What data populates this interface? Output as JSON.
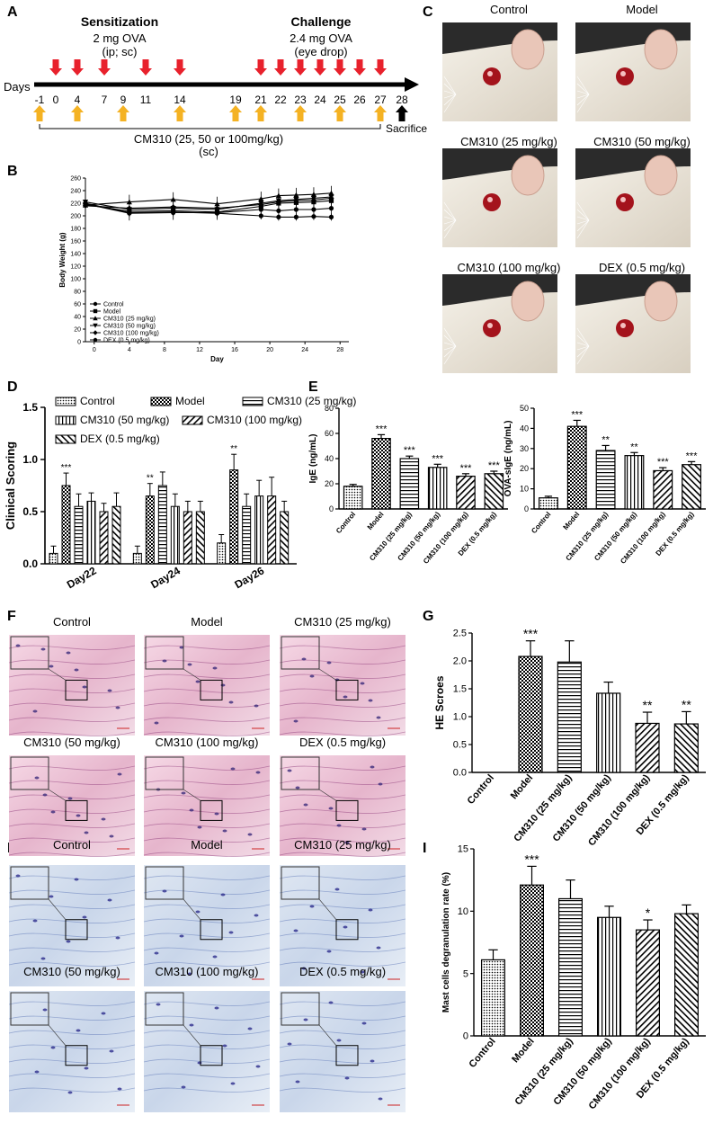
{
  "panel_letters": [
    "A",
    "B",
    "C",
    "D",
    "E",
    "F",
    "G",
    "H",
    "I"
  ],
  "timeline": {
    "sensitization_title": "Sensitization",
    "sensitization_dose": "2 mg OVA",
    "sensitization_route": "(ip; sc)",
    "challenge_title": "Challenge",
    "challenge_dose": "2.4 mg OVA",
    "challenge_route": "(eye drop)",
    "days_label": "Days",
    "days": [
      "-1",
      "0",
      "4",
      "7",
      "9",
      "11",
      "14",
      "19",
      "21",
      "22",
      "23",
      "24",
      "25",
      "26",
      "27",
      "28"
    ],
    "red_arrow_days": [
      "0",
      "4",
      "7",
      "11",
      "14",
      "21",
      "22",
      "23",
      "24",
      "25",
      "26",
      "27"
    ],
    "yellow_arrow_days": [
      "-1",
      "4",
      "9",
      "14",
      "19",
      "21",
      "23",
      "25",
      "27"
    ],
    "black_arrow_days": [
      "28"
    ],
    "sacrifice_label": "Sacrifice",
    "treatment_label": "CM310 (25, 50 or 100mg/kg)",
    "treatment_route": "(sc)",
    "colors": {
      "red_arrow": "#e8212c",
      "yellow_arrow": "#f4b223",
      "black_arrow": "#000000"
    }
  },
  "photo_labels": [
    "Control",
    "Model",
    "CM310 (25 mg/kg)",
    "CM310 (50 mg/kg)",
    "CM310 (100 mg/kg)",
    "DEX (0.5 mg/kg)"
  ],
  "he_labels": [
    "Control",
    "Model",
    "CM310 (25 mg/kg)",
    "CM310 (50 mg/kg)",
    "CM310 (100 mg/kg)",
    "DEX (0.5 mg/kg)"
  ],
  "tb_labels": [
    "Control",
    "Model",
    "CM310 (25 mg/kg)",
    "CM310 (50 mg/kg)",
    "CM310 (100 mg/kg)",
    "DEX (0.5 mg/kg)"
  ],
  "chart_data": [
    {
      "panel": "B",
      "type": "line",
      "xlabel": "Day",
      "ylabel": "Body Weight (g)",
      "xticks": [
        0,
        4,
        8,
        12,
        16,
        20,
        24,
        28
      ],
      "yticks": [
        0,
        20,
        40,
        60,
        80,
        100,
        120,
        140,
        160,
        180,
        200,
        220,
        240,
        260
      ],
      "xlim": [
        -1,
        29
      ],
      "ylim": [
        0,
        260
      ],
      "x": [
        -1,
        4,
        9,
        14,
        19,
        21,
        23,
        25,
        27
      ],
      "legend_placement": "bottom-left",
      "series": [
        {
          "name": "Control",
          "values": [
            220,
            205,
            206,
            204,
            200,
            198,
            198,
            199,
            198
          ]
        },
        {
          "name": "Model",
          "values": [
            218,
            207,
            208,
            206,
            215,
            220,
            221,
            222,
            224
          ]
        },
        {
          "name": "CM310 (25 mg/kg)",
          "values": [
            217,
            222,
            226,
            219,
            227,
            232,
            233,
            234,
            236
          ]
        },
        {
          "name": "CM310 (50 mg/kg)",
          "values": [
            222,
            210,
            212,
            210,
            220,
            224,
            226,
            228,
            230
          ]
        },
        {
          "name": "CM310 (100 mg/kg)",
          "values": [
            216,
            212,
            214,
            212,
            218,
            222,
            224,
            225,
            228
          ]
        },
        {
          "name": "DEX (0.5 mg/kg)",
          "values": [
            219,
            204,
            205,
            205,
            210,
            208,
            210,
            210,
            212
          ]
        }
      ]
    },
    {
      "panel": "D",
      "type": "bar",
      "ylabel": "Clinical Scoring",
      "ylim": [
        0,
        1.5
      ],
      "yticks": [
        "0.0",
        "0.5",
        "1.0",
        "1.5"
      ],
      "categories": [
        "Day22",
        "Day24",
        "Day26"
      ],
      "legend_placement": "top",
      "series": [
        {
          "name": "Control",
          "values": [
            0.1,
            0.1,
            0.2
          ],
          "errors": [
            0.07,
            0.07,
            0.08
          ]
        },
        {
          "name": "Model",
          "values": [
            0.75,
            0.65,
            0.9
          ],
          "errors": [
            0.12,
            0.12,
            0.15
          ],
          "sig": [
            "***",
            "**",
            "**"
          ]
        },
        {
          "name": "CM310 (25 mg/kg)",
          "values": [
            0.55,
            0.75,
            0.55
          ],
          "errors": [
            0.12,
            0.13,
            0.12
          ]
        },
        {
          "name": "CM310 (50 mg/kg)",
          "values": [
            0.6,
            0.55,
            0.65
          ],
          "errors": [
            0.08,
            0.12,
            0.15
          ]
        },
        {
          "name": "CM310 (100 mg/kg)",
          "values": [
            0.5,
            0.5,
            0.65
          ],
          "errors": [
            0.08,
            0.1,
            0.18
          ]
        },
        {
          "name": "DEX (0.5 mg/kg)",
          "values": [
            0.55,
            0.5,
            0.5
          ],
          "errors": [
            0.13,
            0.1,
            0.1
          ]
        }
      ]
    },
    {
      "panel": "E-left",
      "type": "bar",
      "ylabel": "IgE (ng/mL)",
      "ylim": [
        0,
        80
      ],
      "yticks": [
        "0",
        "20",
        "40",
        "60",
        "80"
      ],
      "categories": [
        "Control",
        "Model",
        "CM310 (25 mg/kg)",
        "CM310 (50 mg/kg)",
        "CM310 (100 mg/kg)",
        "DEX (0.5 mg/kg)"
      ],
      "values": [
        18,
        56,
        40,
        33,
        26,
        28
      ],
      "errors": [
        1.5,
        3,
        2,
        2.5,
        2,
        2
      ],
      "sig": [
        "",
        "***",
        "***",
        "***",
        "***",
        "***"
      ]
    },
    {
      "panel": "E-right",
      "type": "bar",
      "ylabel": "OVA-sIgE (ng/mL)",
      "ylim": [
        0,
        50
      ],
      "yticks": [
        "0",
        "10",
        "20",
        "30",
        "40",
        "50"
      ],
      "categories": [
        "Control",
        "Model",
        "CM310 (25 mg/kg)",
        "CM310 (50 mg/kg)",
        "CM310 (100 mg/kg)",
        "DEX (0.5 mg/kg)"
      ],
      "values": [
        5.5,
        41,
        29,
        26.5,
        19,
        22
      ],
      "errors": [
        0.8,
        3,
        2.5,
        1.5,
        1.5,
        1.5
      ],
      "sig": [
        "",
        "***",
        "**",
        "**",
        "***",
        "***"
      ]
    },
    {
      "panel": "G",
      "type": "bar",
      "ylabel": "HE Scroes",
      "ylim": [
        0,
        2.5
      ],
      "yticks": [
        "0.0",
        "0.5",
        "1.0",
        "1.5",
        "2.0",
        "2.5"
      ],
      "categories": [
        "Control",
        "Model",
        "CM310 (25 mg/kg)",
        "CM310 (50 mg/kg)",
        "CM310 (100 mg/kg)",
        "DEX (0.5 mg/kg)"
      ],
      "values": [
        0,
        2.08,
        1.98,
        1.42,
        0.88,
        0.87
      ],
      "errors": [
        0,
        0.28,
        0.38,
        0.2,
        0.2,
        0.22
      ],
      "sig": [
        "",
        "***",
        "",
        "",
        "**",
        "**"
      ]
    },
    {
      "panel": "I",
      "type": "bar",
      "ylabel": "Mast cells degranulation rate (%)",
      "ylim": [
        0,
        15
      ],
      "yticks": [
        "0",
        "5",
        "10",
        "15"
      ],
      "categories": [
        "Control",
        "Model",
        "CM310 (25 mg/kg)",
        "CM310 (50 mg/kg)",
        "CM310 (100 mg/kg)",
        "DEX (0.5 mg/kg)"
      ],
      "values": [
        6.1,
        12.1,
        11.0,
        9.5,
        8.5,
        9.8
      ],
      "errors": [
        0.8,
        1.5,
        1.5,
        0.9,
        0.8,
        0.7
      ],
      "sig": [
        "",
        "***",
        "",
        "",
        "*",
        ""
      ]
    }
  ]
}
